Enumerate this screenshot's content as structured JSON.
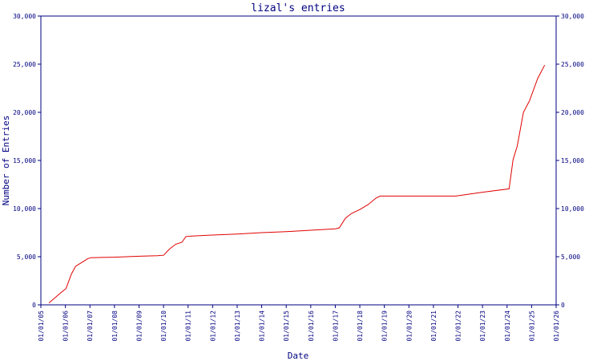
{
  "chart_data": {
    "type": "line",
    "title": "lizal's entries",
    "xlabel": "Date",
    "ylabel": "Number of Entries",
    "x_ticks": [
      "01/01/05",
      "01/01/06",
      "01/01/07",
      "01/01/08",
      "01/01/09",
      "01/01/10",
      "01/01/11",
      "01/01/12",
      "01/01/13",
      "01/01/14",
      "01/01/15",
      "01/01/16",
      "01/01/17",
      "01/01/18",
      "01/01/19",
      "01/01/20",
      "01/01/21",
      "01/01/22",
      "01/01/23",
      "01/01/24",
      "01/01/25",
      "01/01/26"
    ],
    "y_ticks": [
      "0",
      "5,000",
      "10,000",
      "15,000",
      "20,000",
      "25,000",
      "30,000"
    ],
    "ylim": [
      0,
      30000
    ],
    "xlim": [
      "2005-01-01",
      "2026-01-01"
    ],
    "grid": false,
    "colors": {
      "line": "#e00000",
      "axis": "#000080",
      "text": "#000080"
    },
    "series": [
      {
        "points": [
          {
            "x": "2005-05-01",
            "y": 200
          },
          {
            "x": "2005-10-15",
            "y": 1200
          },
          {
            "x": "2006-01-10",
            "y": 1700
          },
          {
            "x": "2006-04-01",
            "y": 3200
          },
          {
            "x": "2006-06-01",
            "y": 4000
          },
          {
            "x": "2006-09-01",
            "y": 4400
          },
          {
            "x": "2006-12-01",
            "y": 4800
          },
          {
            "x": "2007-01-15",
            "y": 4900
          },
          {
            "x": "2008-01-01",
            "y": 4950
          },
          {
            "x": "2009-01-01",
            "y": 5050
          },
          {
            "x": "2009-10-01",
            "y": 5100
          },
          {
            "x": "2010-01-01",
            "y": 5150
          },
          {
            "x": "2010-04-01",
            "y": 5800
          },
          {
            "x": "2010-07-01",
            "y": 6300
          },
          {
            "x": "2010-10-01",
            "y": 6500
          },
          {
            "x": "2010-12-01",
            "y": 7100
          },
          {
            "x": "2011-03-01",
            "y": 7150
          },
          {
            "x": "2012-01-01",
            "y": 7250
          },
          {
            "x": "2013-01-01",
            "y": 7350
          },
          {
            "x": "2014-01-01",
            "y": 7500
          },
          {
            "x": "2015-01-01",
            "y": 7600
          },
          {
            "x": "2016-01-01",
            "y": 7750
          },
          {
            "x": "2017-01-01",
            "y": 7900
          },
          {
            "x": "2017-03-01",
            "y": 8000
          },
          {
            "x": "2017-06-01",
            "y": 9000
          },
          {
            "x": "2017-09-01",
            "y": 9500
          },
          {
            "x": "2018-01-01",
            "y": 9900
          },
          {
            "x": "2018-05-01",
            "y": 10400
          },
          {
            "x": "2018-09-01",
            "y": 11100
          },
          {
            "x": "2018-11-01",
            "y": 11300
          },
          {
            "x": "2019-06-01",
            "y": 11300
          },
          {
            "x": "2020-06-01",
            "y": 11300
          },
          {
            "x": "2021-06-01",
            "y": 11300
          },
          {
            "x": "2021-12-01",
            "y": 11300
          },
          {
            "x": "2023-01-01",
            "y": 11700
          },
          {
            "x": "2024-02-01",
            "y": 12050
          },
          {
            "x": "2024-04-01",
            "y": 15100
          },
          {
            "x": "2024-06-01",
            "y": 16500
          },
          {
            "x": "2024-09-01",
            "y": 20000
          },
          {
            "x": "2024-12-01",
            "y": 21200
          },
          {
            "x": "2025-04-01",
            "y": 23500
          },
          {
            "x": "2025-07-15",
            "y": 24900
          }
        ]
      }
    ]
  }
}
